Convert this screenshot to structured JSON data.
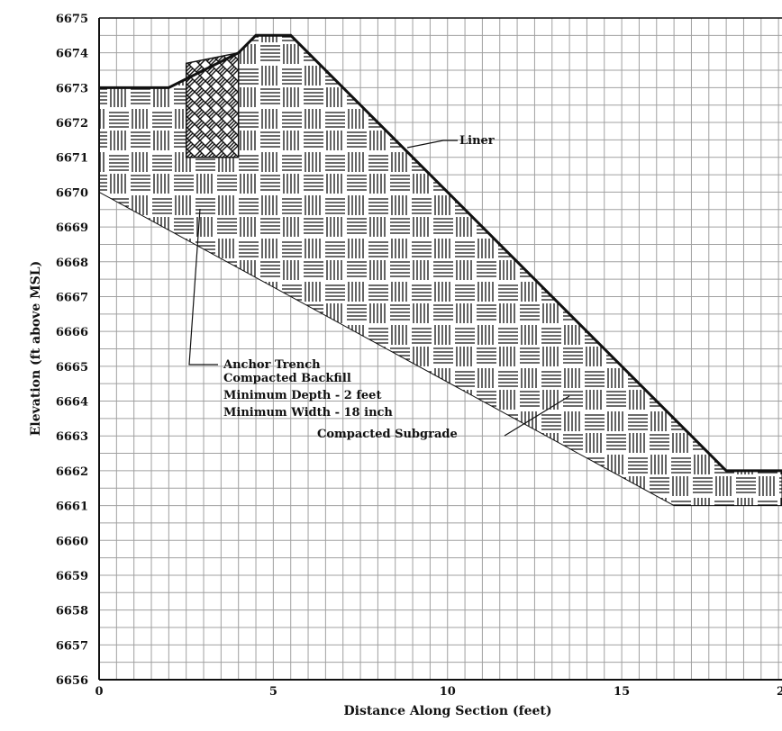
{
  "chart_data": {
    "type": "cross-section",
    "xlabel": "Distance Along Section (feet)",
    "ylabel": "Elevation (ft above MSL)",
    "xlim": [
      0,
      19.6
    ],
    "ylim": [
      6656,
      6675
    ],
    "x_ticks": [
      0,
      5,
      10,
      15
    ],
    "x_tick_labels": [
      "0",
      "5",
      "10",
      "15"
    ],
    "edge_tick_label": "2",
    "y_ticks": [
      6675,
      6674,
      6673,
      6672,
      6671,
      6670,
      6669,
      6668,
      6667,
      6666,
      6665,
      6664,
      6663,
      6662,
      6661,
      6660,
      6659,
      6658,
      6657,
      6656
    ],
    "y_tick_labels": [
      "6675",
      "6674",
      "6673",
      "6672",
      "6671",
      "6670",
      "6669",
      "6668",
      "6667",
      "6666",
      "6665",
      "6664",
      "6663",
      "6662",
      "6661",
      "6660",
      "6659",
      "6658",
      "6657",
      "6656"
    ],
    "grid": true,
    "minor_grid_step_x": 0.5,
    "minor_grid_step_y": 0.5,
    "liner": [
      [
        0,
        6673
      ],
      [
        2,
        6673
      ],
      [
        4,
        6674
      ],
      [
        4.5,
        6674.5
      ],
      [
        5.5,
        6674.5
      ],
      [
        18,
        6662
      ],
      [
        19.6,
        6662
      ]
    ],
    "subgrade_bottom": [
      [
        19.6,
        6661
      ],
      [
        16.5,
        6661
      ],
      [
        0,
        6670
      ]
    ],
    "anchor_trench": [
      [
        2.5,
        6673.7
      ],
      [
        4,
        6674
      ],
      [
        4,
        6671
      ],
      [
        2.5,
        6671
      ]
    ],
    "annotations": {
      "liner": "Liner",
      "anchor_trench_lines": [
        "Anchor Trench",
        "Compacted Backfill",
        "Minimum Depth - 2 feet",
        "Minimum Width - 18 inch"
      ],
      "subgrade": "Compacted Subgrade"
    }
  },
  "colors": {
    "grid": "#a0a0a0",
    "axis": "#111111",
    "liner": "#111111",
    "hatch": "#111111"
  }
}
